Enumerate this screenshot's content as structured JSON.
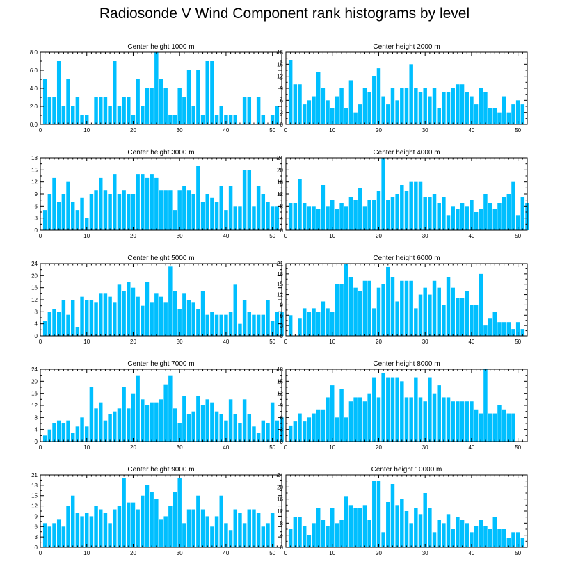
{
  "title": "Radiosonde V Wind Component rank histograms by level",
  "colors": {
    "bar": "#00bfff",
    "axis": "#000000",
    "background": "#ffffff"
  },
  "chart_data": [
    {
      "type": "bar",
      "title": "Center height 1000 m",
      "xlim": [
        0,
        52
      ],
      "ylim": [
        0,
        8
      ],
      "xticks": [
        0,
        10,
        20,
        30,
        40,
        50
      ],
      "yticks": [
        "0.0",
        "2.0",
        "4.0",
        "6.0",
        "8.0"
      ],
      "values": [
        5,
        3,
        3,
        7,
        2,
        5,
        2,
        3,
        1,
        1,
        0,
        3,
        3,
        3,
        2,
        7,
        2,
        3,
        3,
        1,
        5,
        2,
        4,
        4,
        8,
        5,
        4,
        1,
        1,
        4,
        3,
        6,
        2,
        6,
        1,
        7,
        7,
        1,
        2,
        1,
        1,
        1,
        0,
        3,
        3,
        0,
        3,
        1,
        0,
        1,
        2
      ]
    },
    {
      "type": "bar",
      "title": "Center height 2000 m",
      "xlim": [
        0,
        52
      ],
      "ylim": [
        0,
        18
      ],
      "xticks": [
        0,
        10,
        20,
        30,
        40,
        50
      ],
      "yticks": [
        "0",
        "3",
        "6",
        "9",
        "12",
        "15",
        "18"
      ],
      "values": [
        16,
        10,
        10,
        5,
        6,
        7,
        13,
        9,
        6,
        4,
        7,
        9,
        4,
        11,
        3,
        5,
        9,
        8,
        12,
        14,
        7,
        5,
        9,
        6,
        9,
        9,
        15,
        9,
        8,
        9,
        7,
        9,
        4,
        8,
        8,
        9,
        10,
        10,
        8,
        7,
        5,
        9,
        8,
        4,
        4,
        3,
        7,
        3,
        5,
        6,
        5
      ]
    },
    {
      "type": "bar",
      "title": "Center height 3000 m",
      "xlim": [
        0,
        52
      ],
      "ylim": [
        0,
        18
      ],
      "xticks": [
        0,
        10,
        20,
        30,
        40,
        50
      ],
      "yticks": [
        "0",
        "3",
        "6",
        "9",
        "12",
        "15",
        "18"
      ],
      "values": [
        5,
        9,
        13,
        7,
        9,
        12,
        7,
        5,
        8,
        3,
        9,
        10,
        13,
        10,
        9,
        14,
        9,
        10,
        9,
        9,
        14,
        14,
        13,
        14,
        13,
        10,
        10,
        10,
        5,
        10,
        11,
        10,
        9,
        16,
        7,
        9,
        8,
        7,
        11,
        5,
        11,
        6,
        6,
        15,
        15,
        6,
        11,
        9,
        7,
        6,
        6
      ]
    },
    {
      "type": "bar",
      "title": "Center height 4000 m",
      "xlim": [
        0,
        52
      ],
      "ylim": [
        0,
        24
      ],
      "xticks": [
        0,
        10,
        20,
        30,
        40,
        50
      ],
      "yticks": [
        "0",
        "4",
        "8",
        "12",
        "16",
        "20",
        "24"
      ],
      "values": [
        9,
        9,
        17,
        9,
        8,
        8,
        7,
        15,
        8,
        10,
        7,
        9,
        8,
        11,
        10,
        14,
        8,
        10,
        10,
        13,
        24,
        10,
        11,
        12,
        15,
        13,
        16,
        16,
        16,
        11,
        11,
        12,
        9,
        11,
        5,
        8,
        7,
        9,
        8,
        10,
        6,
        7,
        12,
        9,
        7,
        9,
        11,
        12,
        16,
        5,
        11,
        9
      ]
    },
    {
      "type": "bar",
      "title": "Center height 5000 m",
      "xlim": [
        0,
        52
      ],
      "ylim": [
        0,
        24
      ],
      "xticks": [
        0,
        10,
        20,
        30,
        40,
        50
      ],
      "yticks": [
        "0",
        "4",
        "8",
        "12",
        "16",
        "20",
        "24"
      ],
      "values": [
        5,
        8,
        9,
        8,
        12,
        7,
        12,
        3,
        13,
        12,
        12,
        11,
        14,
        14,
        13,
        11,
        17,
        15,
        18,
        16,
        13,
        10,
        18,
        11,
        14,
        13,
        11,
        23,
        15,
        9,
        14,
        12,
        11,
        9,
        15,
        7,
        8,
        7,
        7,
        7,
        8,
        17,
        4,
        12,
        8,
        7,
        7,
        7,
        12,
        5,
        8,
        8
      ]
    },
    {
      "type": "bar",
      "title": "Center height 6000 m",
      "xlim": [
        0,
        52
      ],
      "ylim": [
        0,
        21
      ],
      "xticks": [
        0,
        10,
        20,
        30,
        40,
        50
      ],
      "yticks": [
        "0",
        "3",
        "6",
        "9",
        "12",
        "15",
        "18",
        "21"
      ],
      "values": [
        6,
        0,
        5,
        8,
        7,
        8,
        7,
        10,
        8,
        7,
        15,
        15,
        21,
        17,
        14,
        13,
        16,
        16,
        8,
        14,
        15,
        20,
        17,
        10,
        16,
        16,
        16,
        8,
        12,
        14,
        12,
        16,
        14,
        9,
        17,
        14,
        11,
        11,
        13,
        9,
        9,
        18,
        3,
        5,
        7,
        4,
        4,
        4,
        2,
        4,
        2
      ]
    },
    {
      "type": "bar",
      "title": "Center height 7000 m",
      "xlim": [
        0,
        52
      ],
      "ylim": [
        0,
        24
      ],
      "xticks": [
        0,
        10,
        20,
        30,
        40,
        50
      ],
      "yticks": [
        "0",
        "4",
        "8",
        "12",
        "16",
        "20",
        "24"
      ],
      "values": [
        2,
        4,
        6,
        7,
        6,
        7,
        3,
        5,
        8,
        5,
        18,
        11,
        13,
        7,
        9,
        10,
        11,
        18,
        11,
        16,
        22,
        14,
        12,
        13,
        13,
        14,
        19,
        22,
        11,
        6,
        15,
        9,
        10,
        15,
        12,
        14,
        13,
        10,
        9,
        7,
        14,
        9,
        6,
        14,
        9,
        5,
        3,
        7,
        6,
        13,
        7,
        8
      ]
    },
    {
      "type": "bar",
      "title": "Center height 8000 m",
      "xlim": [
        0,
        52
      ],
      "ylim": [
        0,
        18
      ],
      "xticks": [
        0,
        10,
        20,
        30,
        40,
        50
      ],
      "yticks": [
        "0",
        "3",
        "6",
        "9",
        "12",
        "15",
        "18"
      ],
      "values": [
        4,
        5,
        7,
        5,
        6,
        7,
        8,
        8,
        11,
        14,
        6,
        13,
        6,
        10,
        11,
        11,
        10,
        12,
        16,
        11,
        17,
        16,
        16,
        16,
        15,
        11,
        11,
        16,
        11,
        10,
        16,
        12,
        14,
        11,
        11,
        10,
        10,
        10,
        10,
        10,
        8,
        7,
        18,
        7,
        7,
        9,
        8,
        7,
        7
      ]
    },
    {
      "type": "bar",
      "title": "Center height 9000 m",
      "xlim": [
        0,
        52
      ],
      "ylim": [
        0,
        21
      ],
      "xticks": [
        0,
        10,
        20,
        30,
        40,
        50
      ],
      "yticks": [
        "0",
        "3",
        "6",
        "9",
        "12",
        "15",
        "18",
        "21"
      ],
      "values": [
        7,
        6,
        7,
        8,
        6,
        12,
        15,
        10,
        9,
        10,
        9,
        12,
        11,
        10,
        7,
        11,
        12,
        20,
        13,
        13,
        11,
        15,
        18,
        16,
        14,
        8,
        9,
        12,
        16,
        20,
        7,
        11,
        11,
        15,
        11,
        9,
        6,
        9,
        15,
        7,
        5,
        11,
        10,
        7,
        11,
        11,
        10,
        6,
        7,
        10
      ]
    },
    {
      "type": "bar",
      "title": "Center height 10000 m",
      "xlim": [
        0,
        52
      ],
      "ylim": [
        0,
        24
      ],
      "xticks": [
        0,
        10,
        20,
        30,
        40,
        50
      ],
      "yticks": [
        "0",
        "4",
        "8",
        "12",
        "16",
        "20",
        "24"
      ],
      "values": [
        6,
        10,
        10,
        7,
        4,
        8,
        13,
        9,
        7,
        13,
        8,
        9,
        17,
        14,
        13,
        13,
        14,
        9,
        22,
        22,
        5,
        15,
        21,
        14,
        16,
        12,
        8,
        13,
        11,
        18,
        13,
        5,
        9,
        8,
        11,
        6,
        10,
        9,
        8,
        5,
        7,
        9,
        7,
        6,
        10,
        6,
        6,
        3,
        5,
        5,
        3
      ]
    }
  ]
}
